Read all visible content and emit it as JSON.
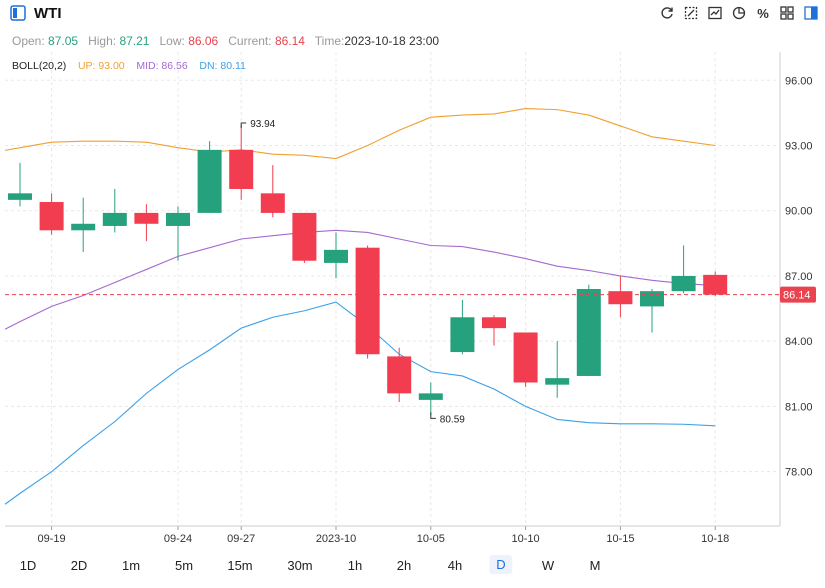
{
  "header": {
    "title": "WTI",
    "tools": [
      {
        "name": "refresh-icon"
      },
      {
        "name": "draw-icon"
      },
      {
        "name": "chart-type-icon"
      },
      {
        "name": "indicator-icon"
      },
      {
        "name": "percent-icon",
        "label": "%"
      },
      {
        "name": "layout-icon"
      },
      {
        "name": "sidebar-icon"
      }
    ]
  },
  "quote": {
    "open_label": "Open:",
    "open": "87.05",
    "high_label": "High:",
    "high": "87.21",
    "low_label": "Low:",
    "low": "86.06",
    "current_label": "Current:",
    "current": "86.14",
    "time_label": "Time:",
    "time": "2023-10-18 23:00"
  },
  "boll": {
    "name": "BOLL(20,2)",
    "up": "UP: 93.00",
    "mid": "MID: 86.56",
    "dn": "DN: 80.11"
  },
  "colors": {
    "up": "#26a17e",
    "down": "#f23c4f",
    "boll_up": "#f0a030",
    "boll_mid": "#a46ad0",
    "boll_dn": "#3aa0e8",
    "price_line": "#e8434e"
  },
  "chart_data": {
    "type": "candlestick",
    "y_ticks": [
      "96.00",
      "93.00",
      "90.00",
      "87.00",
      "84.00",
      "81.00",
      "78.00"
    ],
    "ylim": [
      75.5,
      97.3
    ],
    "x_ticks": [
      {
        "i": 1,
        "label": "09-19"
      },
      {
        "i": 5,
        "label": "09-24"
      },
      {
        "i": 7,
        "label": "09-27"
      },
      {
        "i": 10,
        "label": "2023-10"
      },
      {
        "i": 13,
        "label": "10-05"
      },
      {
        "i": 16,
        "label": "10-10"
      },
      {
        "i": 19,
        "label": "10-15"
      },
      {
        "i": 22,
        "label": "10-18"
      }
    ],
    "candles": [
      {
        "o": 90.5,
        "h": 92.2,
        "l": 90.2,
        "c": 90.8
      },
      {
        "o": 90.4,
        "h": 90.8,
        "l": 88.9,
        "c": 89.1
      },
      {
        "o": 89.1,
        "h": 90.6,
        "l": 88.1,
        "c": 89.4
      },
      {
        "o": 89.3,
        "h": 91.0,
        "l": 89.0,
        "c": 89.9
      },
      {
        "o": 89.9,
        "h": 90.3,
        "l": 88.6,
        "c": 89.4
      },
      {
        "o": 89.3,
        "h": 90.2,
        "l": 87.7,
        "c": 89.9
      },
      {
        "o": 89.9,
        "h": 93.2,
        "l": 89.9,
        "c": 92.8
      },
      {
        "o": 92.8,
        "h": 93.94,
        "l": 90.5,
        "c": 91.0
      },
      {
        "o": 90.8,
        "h": 92.1,
        "l": 89.7,
        "c": 89.9
      },
      {
        "o": 89.9,
        "h": 89.9,
        "l": 87.6,
        "c": 87.7
      },
      {
        "o": 87.6,
        "h": 89.0,
        "l": 86.9,
        "c": 88.2
      },
      {
        "o": 88.3,
        "h": 88.4,
        "l": 83.2,
        "c": 83.4
      },
      {
        "o": 83.3,
        "h": 83.7,
        "l": 81.2,
        "c": 81.6
      },
      {
        "o": 81.3,
        "h": 82.1,
        "l": 80.59,
        "c": 81.6
      },
      {
        "o": 83.5,
        "h": 85.9,
        "l": 83.4,
        "c": 85.1
      },
      {
        "o": 85.1,
        "h": 85.2,
        "l": 83.8,
        "c": 84.6
      },
      {
        "o": 84.4,
        "h": 84.4,
        "l": 81.9,
        "c": 82.1
      },
      {
        "o": 82.0,
        "h": 84.0,
        "l": 81.4,
        "c": 82.3
      },
      {
        "o": 82.4,
        "h": 86.6,
        "l": 82.4,
        "c": 86.4
      },
      {
        "o": 86.3,
        "h": 87.0,
        "l": 85.1,
        "c": 85.7
      },
      {
        "o": 85.6,
        "h": 86.4,
        "l": 84.4,
        "c": 86.3
      },
      {
        "o": 86.3,
        "h": 88.4,
        "l": 86.2,
        "c": 87.0
      },
      {
        "o": 87.05,
        "h": 87.21,
        "l": 86.06,
        "c": 86.14
      }
    ],
    "boll_up": [
      92.9,
      93.15,
      93.2,
      93.2,
      93.15,
      92.9,
      92.7,
      92.8,
      92.6,
      92.55,
      92.4,
      93.0,
      93.7,
      94.3,
      94.4,
      94.45,
      94.7,
      94.65,
      94.4,
      93.9,
      93.4,
      93.2,
      93.0
    ],
    "boll_mid": [
      84.9,
      85.6,
      86.1,
      86.7,
      87.3,
      87.9,
      88.3,
      88.7,
      88.85,
      89.0,
      89.1,
      89.0,
      88.7,
      88.4,
      88.35,
      88.1,
      87.8,
      87.45,
      87.25,
      87.0,
      86.8,
      86.65,
      86.56
    ],
    "boll_dn": [
      77.0,
      78.0,
      79.2,
      80.3,
      81.6,
      82.7,
      83.6,
      84.6,
      85.1,
      85.4,
      85.8,
      84.7,
      83.4,
      82.6,
      82.4,
      81.8,
      81.0,
      80.4,
      80.25,
      80.2,
      80.2,
      80.18,
      80.11
    ],
    "current_price": "86.14",
    "high_annotation": {
      "i": 7,
      "value": "93.94"
    },
    "low_annotation": {
      "i": 13,
      "value": "80.59"
    }
  },
  "periods": [
    "1D",
    "2D",
    "1m",
    "5m",
    "15m",
    "30m",
    "1h",
    "2h",
    "4h",
    "D",
    "W",
    "M"
  ],
  "active_period": "D"
}
